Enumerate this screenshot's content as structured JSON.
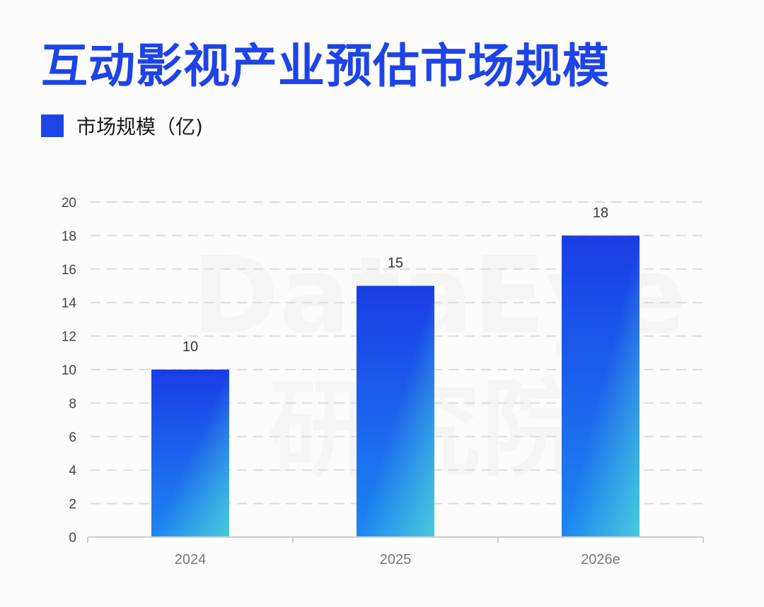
{
  "colors": {
    "title": "#1e44e8",
    "bar_top": "#1a3de6",
    "bar_bottom": "#1c86f2",
    "bar_corner": "#4fd6d9",
    "grid": "#dddddd"
  },
  "chart_data": {
    "type": "bar",
    "title": "互动影视产业预估市场规模",
    "categories": [
      "2024",
      "2025",
      "2026e"
    ],
    "series": [
      {
        "name": "市场规模（亿)",
        "values": [
          10,
          15,
          18
        ]
      }
    ],
    "data_labels": [
      "10",
      "15",
      "18"
    ],
    "yticks": [
      "0",
      "2",
      "4",
      "6",
      "8",
      "10",
      "12",
      "14",
      "16",
      "18",
      "20"
    ],
    "ylim": [
      0,
      20
    ],
    "grid": true,
    "legend_position": "top-left"
  }
}
